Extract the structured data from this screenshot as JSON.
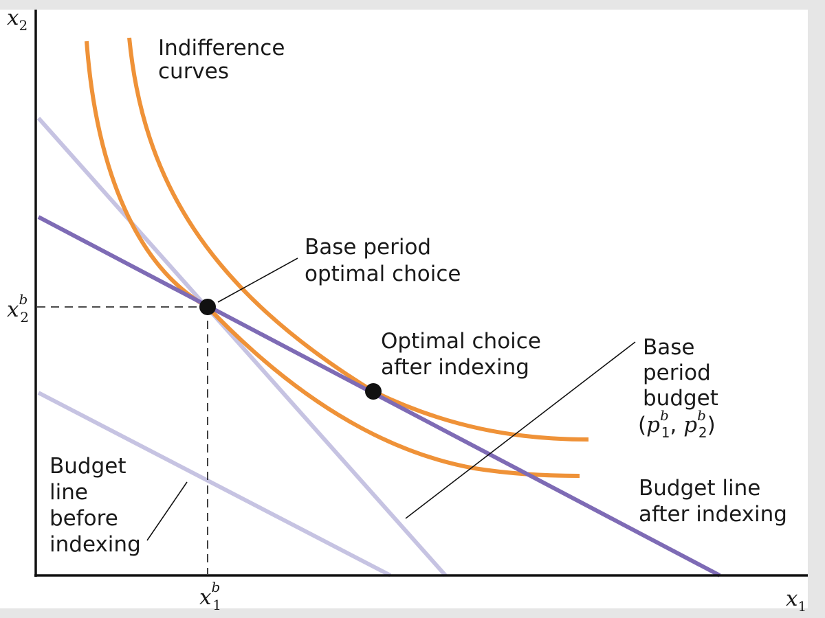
{
  "axes": {
    "x_label": "x",
    "x_label_sub": "1",
    "y_label": "x",
    "y_label_sub": "2"
  },
  "ticks": {
    "x1b": {
      "base": "x",
      "sub": "1",
      "sup": "b"
    },
    "x2b": {
      "base": "x",
      "sub": "2",
      "sup": "b"
    }
  },
  "annotations": {
    "indifference_curves": [
      "Indifference",
      "curves"
    ],
    "base_choice": [
      "Base period",
      "optimal choice"
    ],
    "indexed_choice": [
      "Optimal choice",
      "after indexing"
    ],
    "base_budget": [
      "Base",
      "period",
      "budget"
    ],
    "base_budget_prices": {
      "open": "(",
      "p1_base": "p",
      "p1_sub": "1",
      "p1_sup": "b",
      "comma": ", ",
      "p2_base": "p",
      "p2_sub": "2",
      "p2_sup": "b",
      "close": ")"
    },
    "budget_after": [
      "Budget line",
      "after indexing"
    ],
    "budget_before": [
      "Budget",
      "line",
      "before",
      "indexing"
    ]
  },
  "colors": {
    "indifference": "#ef9238",
    "budget_after": "#7e6bb5",
    "budget_light": "#c6c3e2",
    "axis": "#111111",
    "frame": "#e6e6e6"
  }
}
